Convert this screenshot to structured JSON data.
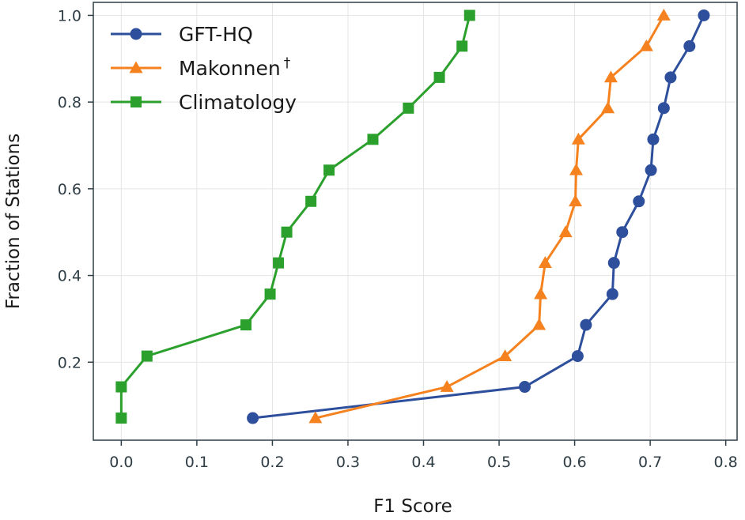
{
  "chart_data": {
    "type": "line",
    "title": "",
    "xlabel": "F1 Score",
    "ylabel": "Fraction of Stations",
    "xlim": [
      -0.037,
      0.815
    ],
    "ylim": [
      0.02,
      1.03
    ],
    "xticks": [
      0.0,
      0.1,
      0.2,
      0.3,
      0.4,
      0.5,
      0.6,
      0.7,
      0.8
    ],
    "xtick_labels": [
      "0.0",
      "0.1",
      "0.2",
      "0.3",
      "0.4",
      "0.5",
      "0.6",
      "0.7",
      "0.8"
    ],
    "yticks": [
      0.2,
      0.4,
      0.6,
      0.8,
      1.0
    ],
    "ytick_labels": [
      "0.2",
      "0.4",
      "0.6",
      "0.8",
      "1.0"
    ],
    "grid": true,
    "legend_position": "top-left",
    "series": [
      {
        "name": "GFT-HQ",
        "legend_name": "GFT-HQ",
        "legend_sup": "",
        "color": "#2e4f9c",
        "marker": "circle",
        "x": [
          0.174,
          0.534,
          0.604,
          0.615,
          0.65,
          0.652,
          0.663,
          0.685,
          0.701,
          0.704,
          0.718,
          0.727,
          0.752,
          0.771
        ],
        "y": [
          0.071,
          0.143,
          0.214,
          0.286,
          0.357,
          0.429,
          0.5,
          0.571,
          0.643,
          0.714,
          0.786,
          0.857,
          0.929,
          1.0
        ]
      },
      {
        "name": "Makonnen†",
        "legend_name": "Makonnen",
        "legend_sup": "†",
        "color": "#f5821f",
        "marker": "triangle",
        "x": [
          0.257,
          0.431,
          0.508,
          0.553,
          0.555,
          0.561,
          0.588,
          0.601,
          0.602,
          0.605,
          0.644,
          0.648,
          0.695,
          0.718
        ],
        "y": [
          0.071,
          0.143,
          0.214,
          0.286,
          0.357,
          0.429,
          0.5,
          0.571,
          0.643,
          0.714,
          0.786,
          0.857,
          0.929,
          1.0
        ]
      },
      {
        "name": "Climatology",
        "legend_name": "Climatology",
        "legend_sup": "",
        "color": "#2ca02c",
        "marker": "square",
        "x": [
          0.0,
          0.0,
          0.034,
          0.165,
          0.197,
          0.208,
          0.219,
          0.251,
          0.275,
          0.333,
          0.38,
          0.421,
          0.451,
          0.461
        ],
        "y": [
          0.071,
          0.143,
          0.214,
          0.286,
          0.357,
          0.429,
          0.5,
          0.571,
          0.643,
          0.714,
          0.786,
          0.857,
          0.929,
          1.0
        ]
      }
    ]
  }
}
